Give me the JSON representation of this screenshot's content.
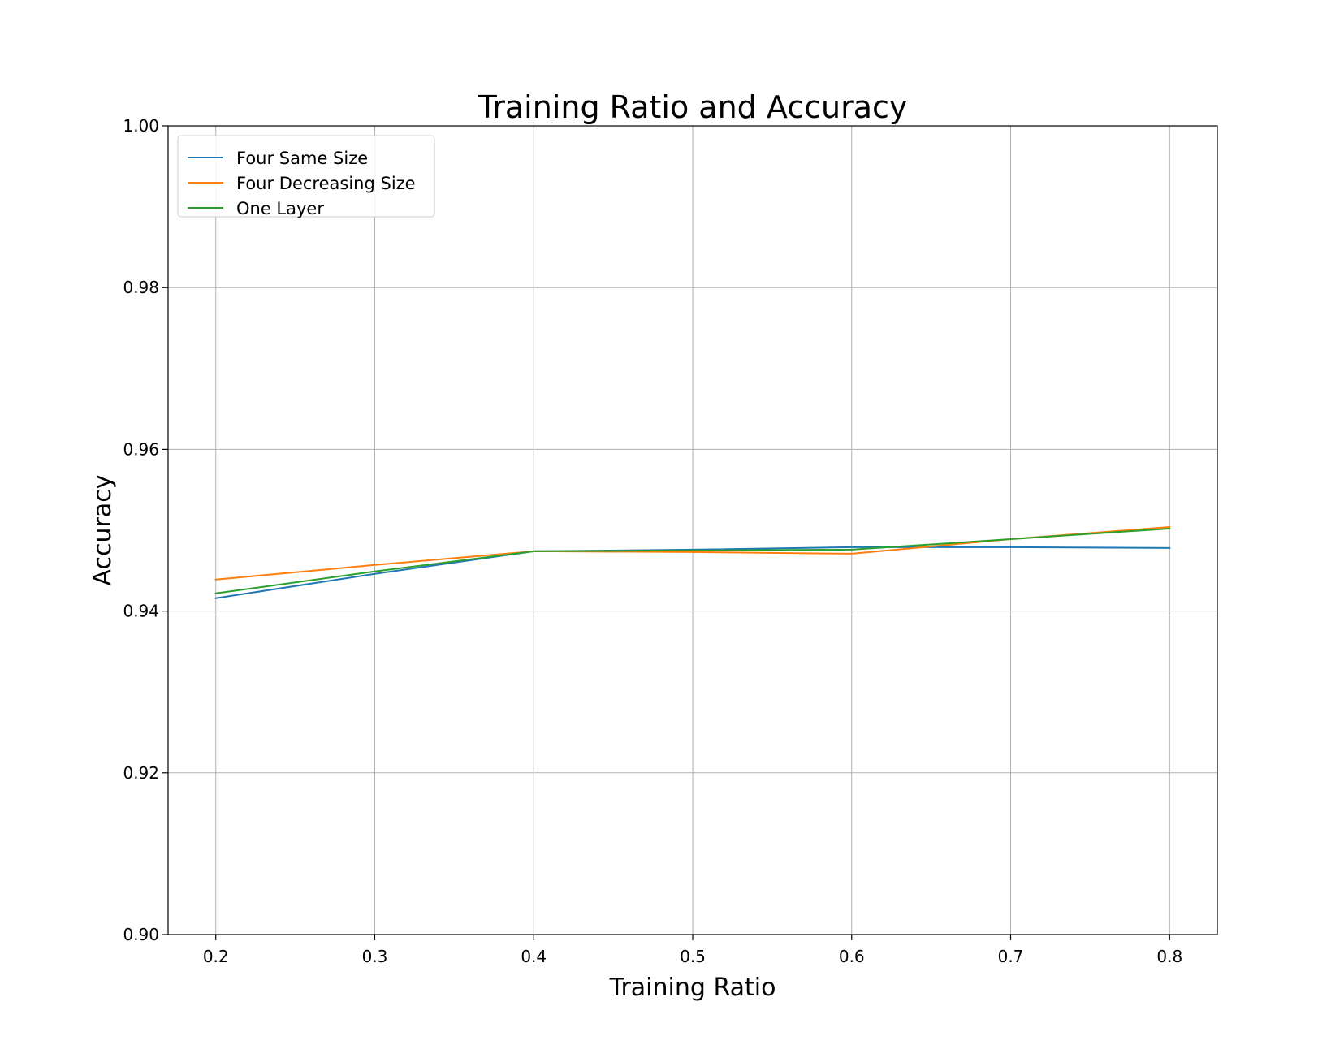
{
  "chart_data": {
    "type": "line",
    "title": "Training Ratio and Accuracy",
    "xlabel": "Training Ratio",
    "ylabel": "Accuracy",
    "x": [
      0.2,
      0.3,
      0.4,
      0.5,
      0.6,
      0.7,
      0.8
    ],
    "xticks": [
      "0.2",
      "0.3",
      "0.4",
      "0.5",
      "0.6",
      "0.7",
      "0.8"
    ],
    "yticks": [
      "0.90",
      "0.92",
      "0.94",
      "0.96",
      "0.98",
      "1.00"
    ],
    "xlim": [
      0.17,
      0.83
    ],
    "ylim": [
      0.9,
      1.0
    ],
    "grid": true,
    "legend_position": "upper-left",
    "series": [
      {
        "name": "Four Same Size",
        "color": "#1f77b4",
        "values": [
          0.9416,
          0.9446,
          0.9474,
          0.9476,
          0.9479,
          0.9479,
          0.9478
        ]
      },
      {
        "name": "Four Decreasing Size",
        "color": "#ff7f0e",
        "values": [
          0.9439,
          0.9457,
          0.9474,
          0.9473,
          0.9471,
          0.9489,
          0.9504
        ]
      },
      {
        "name": "One Layer",
        "color": "#2ca02c",
        "values": [
          0.9422,
          0.9449,
          0.9474,
          0.9475,
          0.9476,
          0.9489,
          0.9502
        ]
      }
    ]
  }
}
